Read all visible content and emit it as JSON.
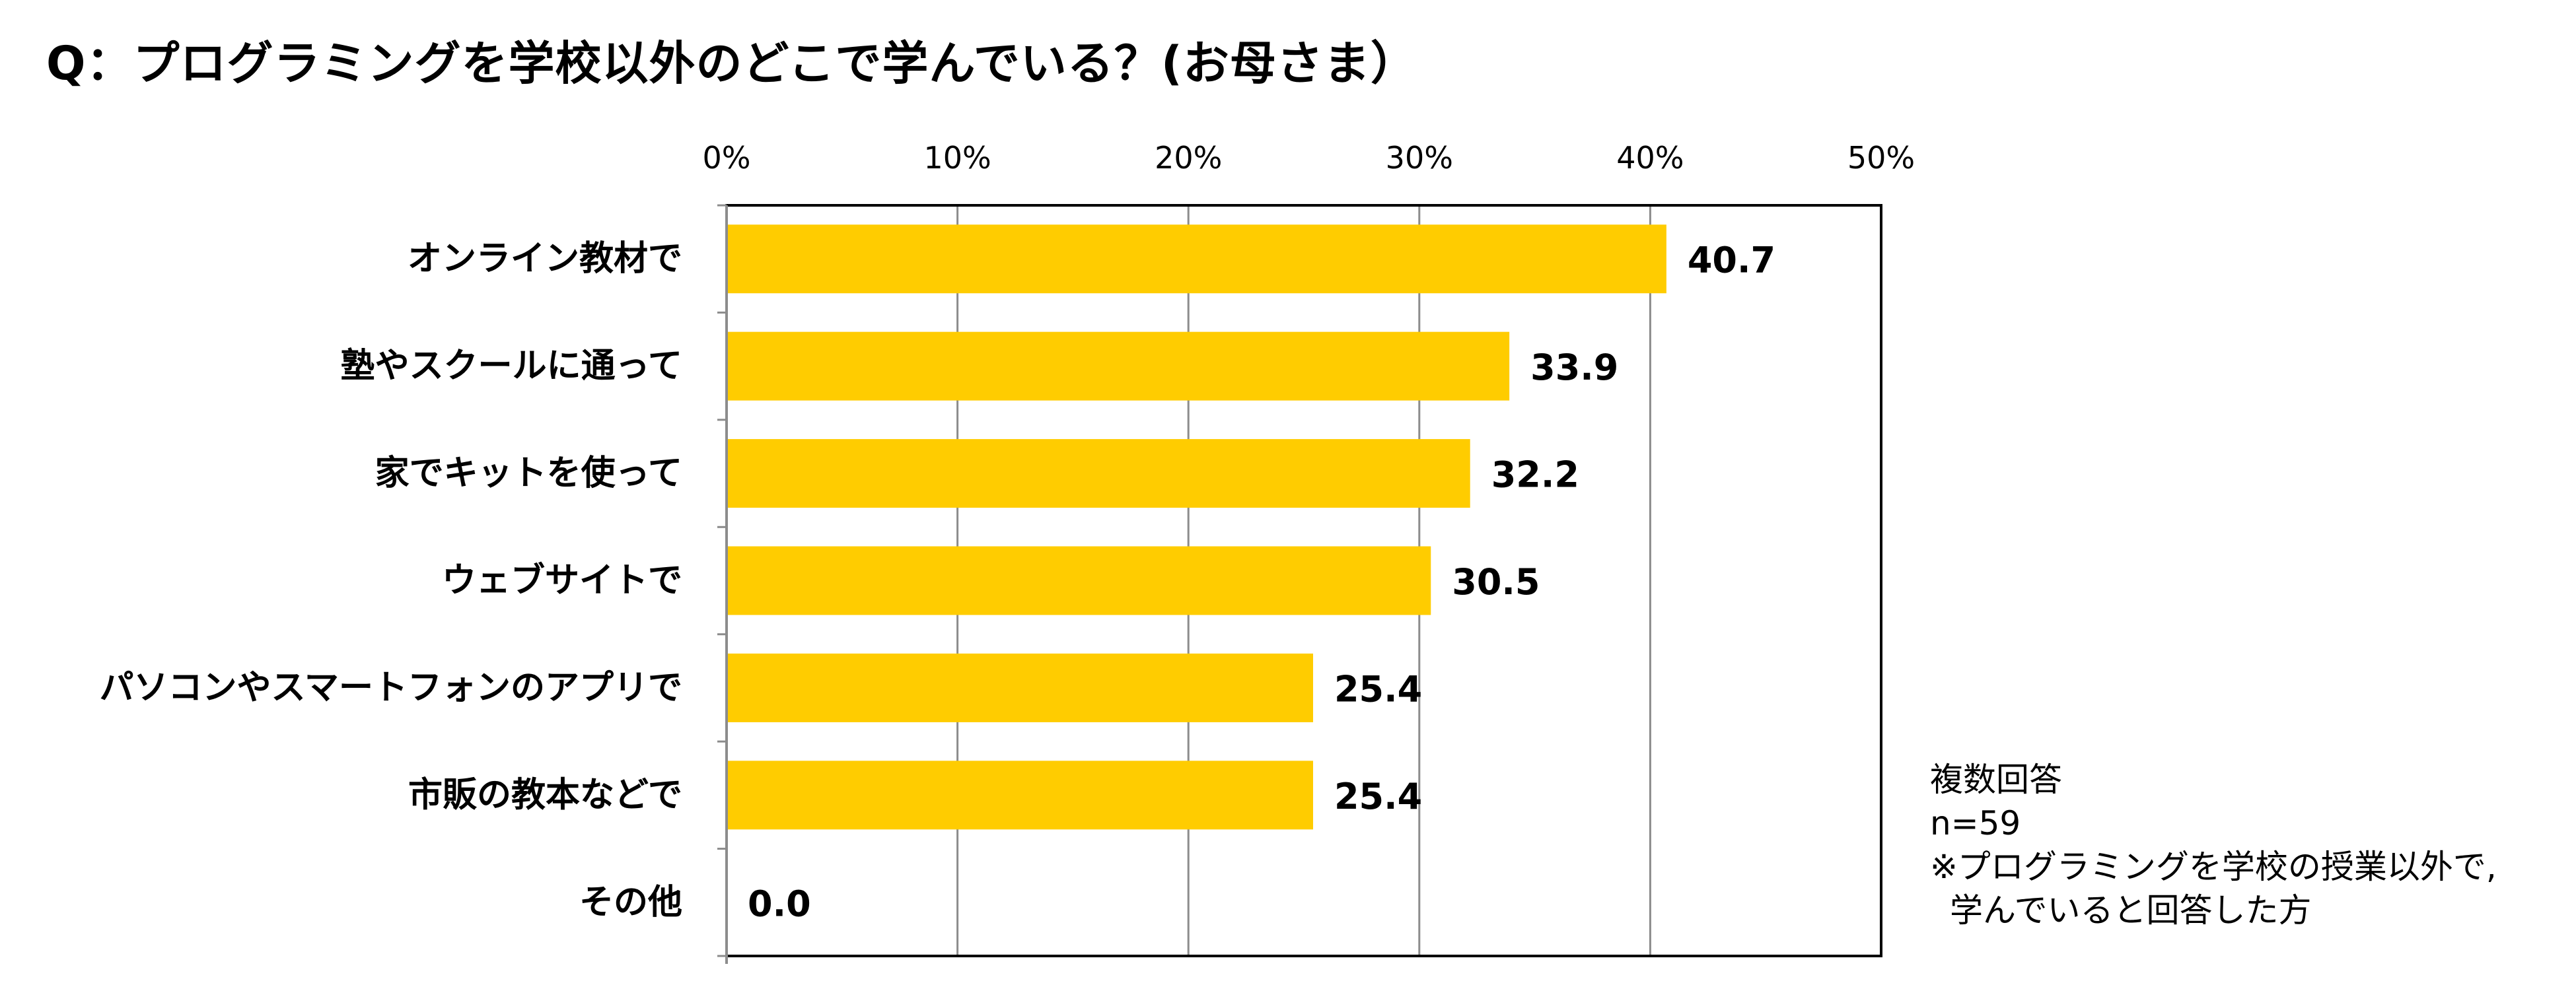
{
  "chart_data": {
    "type": "bar",
    "orientation": "horizontal",
    "title": "Q：プログラミングを学校以外のどこで学んでいる？(お母さま）",
    "categories": [
      "オンライン教材で",
      "塾やスクールに通って",
      "家でキットを使って",
      "ウェブサイトで",
      "パソコンやスマートフォンのアプリで",
      "市販の教本などで",
      "その他"
    ],
    "values": [
      40.7,
      33.9,
      32.2,
      30.5,
      25.4,
      25.4,
      0.0
    ],
    "value_labels": [
      "40.7",
      "33.9",
      "32.2",
      "30.5",
      "25.4",
      "25.4",
      "0.0"
    ],
    "xlim": [
      0,
      50
    ],
    "x_ticks": [
      0,
      10,
      20,
      30,
      40,
      50
    ],
    "x_tick_labels": [
      "0%",
      "10%",
      "20%",
      "30%",
      "40%",
      "50%"
    ],
    "x_axis_position": "top",
    "grid": true,
    "legend": "none",
    "xlabel": "",
    "ylabel": "",
    "bar_color": "#FFCC00",
    "gridline_color": "#8C8C8C",
    "notes": [
      "複数回答",
      "n=59",
      "※プログラミングを学校の授業以外で,",
      "学んでいると回答した方"
    ]
  }
}
